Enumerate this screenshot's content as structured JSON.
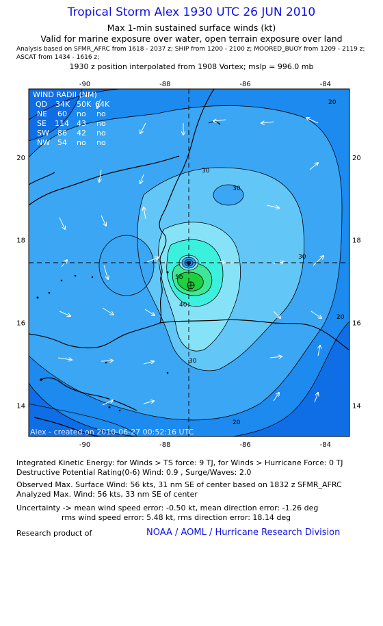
{
  "header": {
    "title": "Tropical Storm Alex 1930 UTC 26 JUN 2010",
    "subtitle1": "Max 1-min sustained surface winds (kt)",
    "subtitle2": "Valid for marine exposure over water, open terrain exposure over land",
    "analysis1": "Analysis based on  SFMR_AFRC from 1618 - 2037 z;  SHIP from 1200 - 2100 z;  MOORED_BUOY from 1209 - 2119 z;",
    "analysis2": "ASCAT from 1434 - 1616 z;",
    "position": "1930 z position interpolated from 1908 Vortex; mslp = 996.0 mb"
  },
  "wind_radii": {
    "title": "WIND RADII (NM)",
    "header": [
      "QD",
      "34K",
      "50K",
      "64K"
    ],
    "rows": [
      [
        "NE",
        "60",
        "no",
        "no"
      ],
      [
        "SE",
        "114",
        "43",
        "no"
      ],
      [
        "SW",
        "86",
        "42",
        "no"
      ],
      [
        "NW",
        "54",
        "no",
        "no"
      ]
    ]
  },
  "watermark": "Alex - created on 2010-06-27 00:52:16 UTC",
  "colors": {
    "title": "#1010e0",
    "band_15": "#0f6ee6",
    "band_20": "#1c8aee",
    "band_25": "#3aa6f4",
    "band_30": "#62c6f7",
    "band_35": "#86e3f7",
    "band_40": "#3cf0de",
    "band_50": "#40e698",
    "band_55": "#1ecf3e",
    "eye": "#102090"
  },
  "chart_data": {
    "type": "contour",
    "title": "Tropical Storm Alex 1930 UTC 26 JUN 2010",
    "x_ticks": [
      "-90",
      "-88",
      "-86",
      "-84"
    ],
    "y_ticks": [
      "20",
      "18",
      "16",
      "14"
    ],
    "xlim": [
      -91.4,
      -83.4
    ],
    "ylim": [
      13.25,
      21.65
    ],
    "contour_levels": [
      20,
      30,
      30,
      30,
      40,
      50
    ],
    "contour_labels": [
      "20",
      "30",
      "30",
      "30",
      "40",
      "50"
    ],
    "center": {
      "lon": -87.5,
      "lat": 17.35
    },
    "max_wind_location": {
      "lon": -87.5,
      "lat": 16.8
    },
    "max_wind_kt": 56,
    "mslp_mb": 996.0
  },
  "footer": {
    "ike": "Integrated Kinetic Energy:  for Winds > TS force: 9 TJ,  for Winds > Hurricane Force: 0 TJ",
    "dpr": "Destructive Potential Rating(0-6)   Wind: 0.9 , Surge/Waves: 2.0",
    "obs_max": "Observed Max. Surface Wind: 56 kts, 31 nm SE of center based on 1832 z SFMR_AFRC",
    "ana_max": "Analyzed Max. Wind: 56 kts, 33 nm SE of center",
    "unc1": "Uncertainty -> mean wind speed error:  -0.50 kt,   mean direction error:  -1.26 deg",
    "unc2": "rms wind speed error: 5.48 kt,   rms direction error: 18.14 deg",
    "research": "Research product of",
    "org": "NOAA / AOML / Hurricane Research Division"
  }
}
